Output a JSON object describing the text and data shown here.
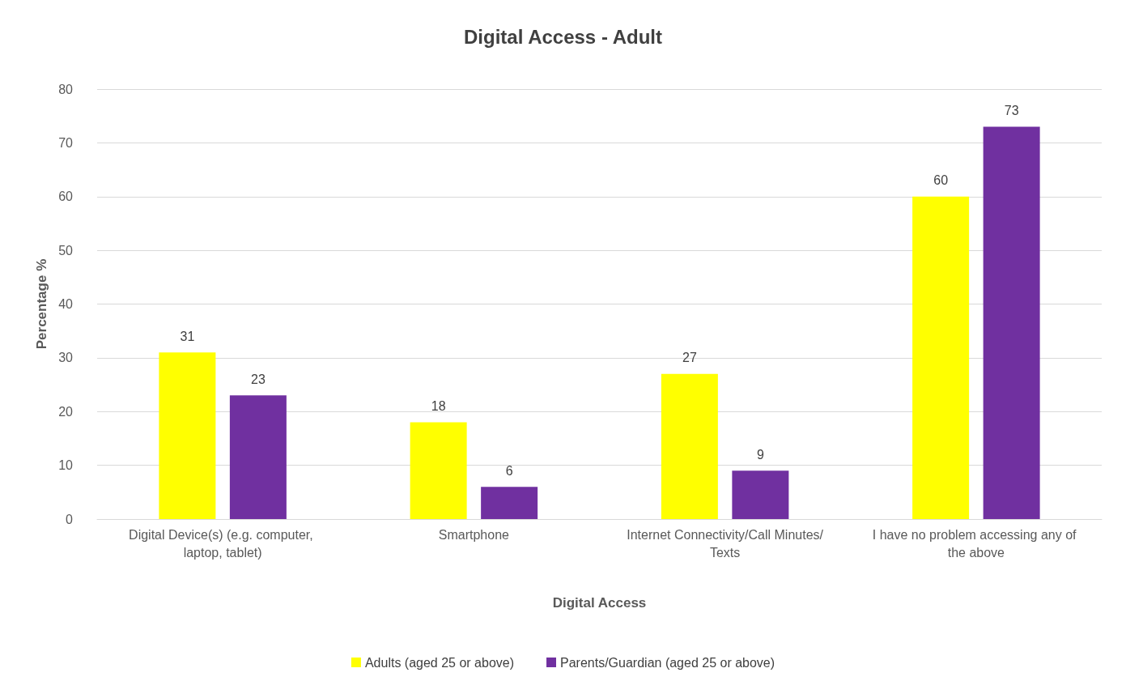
{
  "chart_data": {
    "type": "bar",
    "title": "Digital Access - Adult",
    "xlabel": "Digital Access",
    "ylabel": "Percentage %",
    "categories": [
      "Digital Device(s) (e.g. computer, laptop, tablet)",
      "Smartphone",
      "Internet Connectivity/Call Minutes/Texts",
      "I have no problem accessing any of the above"
    ],
    "series": [
      {
        "name": "Adults (aged 25 or above)",
        "color": "#ffff00",
        "values": [
          31,
          18,
          27,
          60
        ]
      },
      {
        "name": "Parents/Guardian (aged 25 or above)",
        "color": "#7030a0",
        "values": [
          23,
          6,
          9,
          73
        ]
      }
    ],
    "ylim": [
      0,
      80
    ],
    "yticks": [
      0,
      10,
      20,
      30,
      40,
      50,
      60,
      70,
      80
    ],
    "grid": "y",
    "legend": "bottom",
    "data_labels": true
  }
}
